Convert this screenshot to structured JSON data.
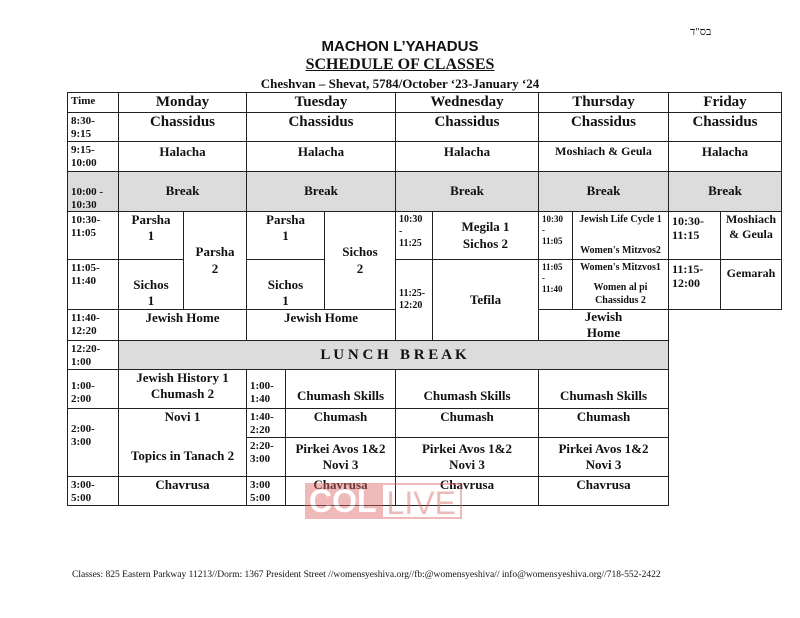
{
  "header": {
    "hebrew_mark": "בס\"ד",
    "org": "MACHON L’YAHADUS",
    "title": "SCHEDULE OF CLASSES",
    "subtitle": "Cheshvan – Shevat, 5784/October ‘23-January ‘24"
  },
  "columns": {
    "time": "Time",
    "days": [
      "Monday",
      "Tuesday",
      "Wednesday",
      "Thursday",
      "Friday"
    ]
  },
  "times": {
    "t1": "8:30-\n9:15",
    "t2": "9:15-\n10:00",
    "t3": "10:00 -\n10:30",
    "t4": "10:30-\n11:05",
    "t5": "11:05-\n11:40",
    "t6": "11:40-\n12:20",
    "t7": "12:20-\n1:00",
    "t8": "1:00-\n2:00",
    "t9": "2:00-\n3:00",
    "t10": "3:00-\n5:00"
  },
  "morning": {
    "chassidus": "Chassidus",
    "halacha": "Halacha",
    "moshiach_geula": "Moshiach & Geula",
    "break": "Break"
  },
  "monday": {
    "parsha1": "Parsha\n1",
    "parsha2": "Parsha\n2",
    "sichos1": "Sichos\n1",
    "jewish_home": "Jewish Home",
    "history": "Jewish History 1\nChumash 2",
    "novi1": "Novi 1",
    "tanach": "Topics in Tanach 2",
    "chavrusa": "Chavrusa"
  },
  "tuesday": {
    "parsha1": "Parsha\n1",
    "sichos2": "Sichos\n2",
    "sichos1": "Sichos\n1",
    "jewish_home": "Jewish Home",
    "time_a": "1:00-\n1:40",
    "time_b": "1:40-\n2:20",
    "time_c": "2:20-\n3:00",
    "time_d": "3:00\n5:00",
    "skills": "Chumash Skills",
    "chumash": "Chumash",
    "pirkei": "Pirkei Avos 1&2\nNovi 3",
    "chavrusa": "Chavrusa"
  },
  "wednesday": {
    "time_a": "10:30\n-\n11:25",
    "time_b": "11:25-\n12:20",
    "megila": "Megila 1\nSichos 2",
    "tefila": "Tefila",
    "skills": "Chumash Skills",
    "chumash": "Chumash",
    "pirkei": "Pirkei Avos 1&2\nNovi 3",
    "chavrusa": "Chavrusa"
  },
  "thursday": {
    "time_a": "10:30\n-\n11:05",
    "time_b": "11:05\n-\n11:40",
    "life_cycle": "Jewish Life Cycle 1",
    "mitzvos2": "Women's Mitzvos2",
    "mitzvos1": "Women's Mitzvos1",
    "al_pi": "Women al pi\nChassidus 2",
    "jewish_home": "Jewish\nHome",
    "skills": "Chumash Skills",
    "chumash": "Chumash",
    "pirkei": "Pirkei Avos 1&2\nNovi 3",
    "chavrusa": "Chavrusa"
  },
  "friday": {
    "time_a": "10:30-\n11:15",
    "time_b": "11:15-\n12:00",
    "moshiach": "Moshiach\n& Geula",
    "gemarah": "Gemarah"
  },
  "lunch": "L U N C H   B R E A K",
  "watermark": "COL LIVE",
  "footer": "Classes: 825 Eastern Parkway 11213//Dorm: 1367 President Street //womensyeshiva.org//fb:@womensyeshiva// info@womensyeshiva.org//718-552-2422"
}
